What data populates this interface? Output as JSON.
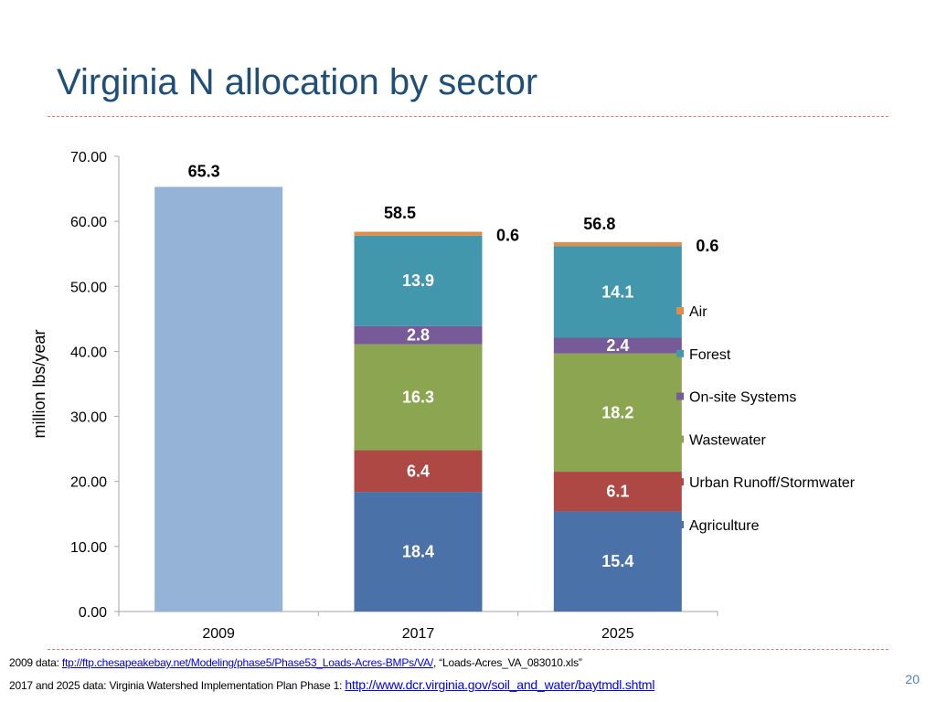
{
  "slide": {
    "title": "Virginia N allocation by sector",
    "slide_number": "20"
  },
  "footnotes": {
    "line1_prefix": "2009 data: ",
    "line1_link": "ftp://ftp.chesapeakebay.net/Modeling/phase5/Phase53_Loads-Acres-BMPs/VA/",
    "line1_suffix": ", “Loads-Acres_VA_083010.xls”",
    "line2_prefix": "2017 and 2025 data: Virginia Watershed Implementation Plan Phase 1: ",
    "line2_link": "http://www.dcr.virginia.gov/soil_and_water/baytmdl.shtml"
  },
  "chart_data": {
    "type": "bar",
    "stacked": true,
    "title": "",
    "xlabel": "",
    "ylabel": "million lbs/year",
    "ylim": [
      0,
      70
    ],
    "yticks": [
      "0.00",
      "10.00",
      "20.00",
      "30.00",
      "40.00",
      "50.00",
      "60.00",
      "70.00"
    ],
    "ytick_values": [
      0,
      10,
      20,
      30,
      40,
      50,
      60,
      70
    ],
    "categories": [
      "2009",
      "2017",
      "2025"
    ],
    "total_bar": {
      "category": "2009",
      "value": 65.3,
      "label": "65.3",
      "color": "#95b3d7"
    },
    "series": [
      {
        "name": "Agriculture",
        "color": "#4a72a9",
        "values": [
          null,
          18.4,
          15.4
        ],
        "labels": [
          "",
          "18.4",
          "15.4"
        ]
      },
      {
        "name": "Urban Runoff/Stormwater",
        "color": "#ad4845",
        "values": [
          null,
          6.4,
          6.1
        ],
        "labels": [
          "",
          "6.4",
          "6.1"
        ]
      },
      {
        "name": "Wastewater",
        "color": "#8ba550",
        "values": [
          null,
          16.3,
          18.2
        ],
        "labels": [
          "",
          "16.3",
          "18.2"
        ]
      },
      {
        "name": "On-site Systems",
        "color": "#775b98",
        "values": [
          null,
          2.8,
          2.4
        ],
        "labels": [
          "",
          "2.8",
          "2.4"
        ]
      },
      {
        "name": "Forest",
        "color": "#4397ad",
        "values": [
          null,
          13.9,
          14.1
        ],
        "labels": [
          "",
          "13.9",
          "14.1"
        ]
      },
      {
        "name": "Air",
        "color": "#df8d4a",
        "values": [
          null,
          0.6,
          0.6
        ],
        "labels": [
          "",
          "0.6",
          "0.6"
        ]
      }
    ],
    "totals": {
      "2017": "58.5",
      "2025": "56.8"
    },
    "legend_position": "right",
    "grid": false
  }
}
